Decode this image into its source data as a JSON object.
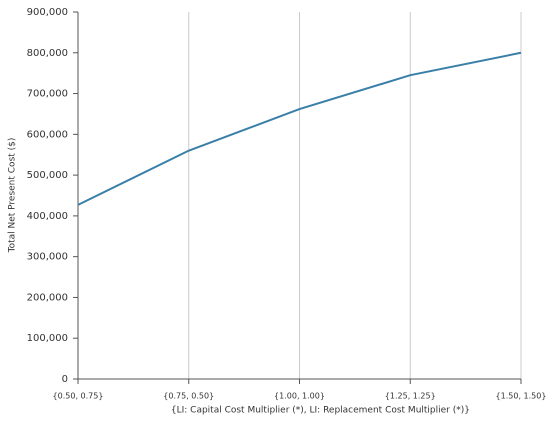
{
  "chart_data": {
    "type": "line",
    "x_label": "{LI: Capital Cost Multiplier (*), LI: Replacement Cost Multiplier (*)}",
    "y_label": "Total Net Present Cost ($)",
    "categories": [
      "{0.50, 0.75}",
      "{0.75, 0.50}",
      "{1.00, 1.00}",
      "{1.25, 1.25}",
      "{1.50, 1.50}"
    ],
    "series": [
      {
        "name": "Total Net Present Cost",
        "color": "#3a7fa8",
        "values": [
          427000,
          560000,
          662000,
          745000,
          800000
        ]
      }
    ],
    "ylim": [
      0,
      900000
    ],
    "yticks": [
      0,
      {
        "value": 100000,
        "label": "100,000"
      },
      {
        "value": 200000,
        "label": "200,000"
      },
      {
        "value": 300000,
        "label": "300,000"
      },
      {
        "value": 400000,
        "label": "400,000"
      },
      {
        "value": 500000,
        "label": "500,000"
      },
      {
        "value": 600000,
        "label": "600,000"
      },
      {
        "value": 700000,
        "label": "700,000"
      },
      {
        "value": 800000,
        "label": "800,000"
      },
      {
        "value": 900000,
        "label": "900,000"
      }
    ],
    "grid": true
  }
}
